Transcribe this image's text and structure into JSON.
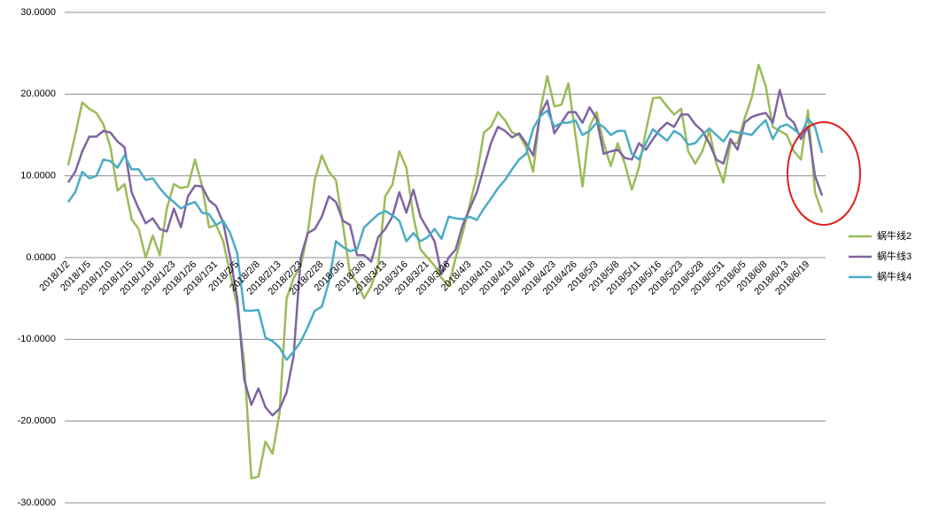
{
  "chart_data": {
    "type": "line",
    "categories": [
      "2018/1/2",
      null,
      null,
      "2018/1/5",
      null,
      null,
      "2018/1/10",
      null,
      null,
      "2018/1/15",
      null,
      null,
      "2018/1/18",
      null,
      null,
      "2018/1/23",
      null,
      null,
      "2018/1/26",
      null,
      null,
      "2018/1/31",
      null,
      null,
      "2018/2/5",
      null,
      null,
      "2018/2/8",
      null,
      null,
      "2018/2/13",
      null,
      null,
      "2018/2/23",
      null,
      null,
      "2018/2/28",
      null,
      null,
      "2018/3/5",
      null,
      null,
      "2018/3/8",
      null,
      null,
      "2018/3/13",
      null,
      null,
      "2018/3/16",
      null,
      null,
      "2018/3/21",
      null,
      null,
      "2018/3/26",
      null,
      null,
      "2018/4/3",
      null,
      null,
      "2018/4/10",
      null,
      null,
      "2018/4/13",
      null,
      null,
      "2018/4/18",
      null,
      null,
      "2018/4/23",
      null,
      null,
      "2018/4/26",
      null,
      null,
      "2018/5/3",
      null,
      null,
      "2018/5/8",
      null,
      null,
      "2018/5/11",
      null,
      null,
      "2018/5/16",
      null,
      null,
      "2018/5/23",
      null,
      null,
      "2018/5/28",
      null,
      null,
      "2018/5/31",
      null,
      null,
      "2018/6/5",
      null,
      null,
      "2018/6/8",
      null,
      null,
      "2018/6/13",
      null,
      null,
      "2018/6/19",
      null,
      null
    ],
    "series": [
      {
        "name": "蜗牛线2",
        "color": "#9bbb59",
        "values": [
          11.3,
          15,
          19,
          18.2,
          17.7,
          16.3,
          13.5,
          8.2,
          9,
          4.7,
          3.5,
          0,
          2.7,
          0.3,
          6,
          9,
          8.5,
          8.7,
          12,
          8.8,
          3.7,
          4,
          2,
          -2,
          -6,
          -13,
          -27,
          -26.8,
          -22.5,
          -24,
          -19,
          -5,
          -2.5,
          -1,
          3,
          9.5,
          12.5,
          10.5,
          9.5,
          4,
          -2,
          -3,
          -5,
          -3.5,
          -1,
          7.5,
          8.9,
          13,
          11,
          5,
          1,
          0,
          -1,
          -2.5,
          -3.5,
          0,
          3,
          6.5,
          10,
          15.3,
          16,
          17.8,
          16.8,
          15.3,
          15,
          13.5,
          10.5,
          18,
          22.2,
          18.5,
          18.7,
          21.3,
          15,
          8.7,
          16,
          17.8,
          14,
          11.2,
          14,
          11.5,
          8.3,
          11,
          15.5,
          19.5,
          19.6,
          18.5,
          17.5,
          18.2,
          13,
          11.5,
          13,
          15.5,
          11.5,
          9.2,
          14,
          14,
          17,
          19.5,
          23.6,
          21,
          16,
          15.5,
          15,
          13,
          12,
          18,
          8,
          5.5
        ]
      },
      {
        "name": "蜗牛线3",
        "color": "#8064a2",
        "values": [
          9.2,
          10.5,
          13,
          14.8,
          14.8,
          15.5,
          15.3,
          14.2,
          13.5,
          8,
          6,
          4.2,
          4.8,
          3.5,
          3.2,
          6,
          3.7,
          7.5,
          8.8,
          8.7,
          7,
          6.3,
          4.3,
          0,
          -5,
          -15,
          -18,
          -16,
          -18.3,
          -19.3,
          -18.5,
          -16.5,
          -12,
          0,
          3,
          3.5,
          5,
          7.5,
          6.8,
          4.5,
          4,
          0.3,
          0.3,
          -0.5,
          2.5,
          3.5,
          5,
          8,
          5.5,
          8.3,
          5,
          3.5,
          2,
          -2,
          0,
          1,
          4,
          6,
          8,
          11,
          14,
          16,
          15.5,
          14.7,
          15.2,
          14,
          12.5,
          17.5,
          19.2,
          15.2,
          16.5,
          17.8,
          17.8,
          16.5,
          18.4,
          17,
          12.7,
          13,
          13.2,
          12.2,
          12,
          14,
          13.2,
          14.5,
          15.7,
          16.5,
          16,
          17.5,
          17.5,
          16.3,
          15.5,
          14,
          12,
          11.5,
          14.5,
          13.2,
          16.5,
          17.2,
          17.5,
          17.7,
          16.5,
          20.5,
          17.3,
          16.5,
          14.5,
          16,
          10,
          7.6
        ]
      },
      {
        "name": "蜗牛线4",
        "color": "#4bacc6",
        "values": [
          6.8,
          8,
          10.5,
          9.7,
          10,
          12,
          11.8,
          11,
          12.5,
          10.8,
          10.8,
          9.5,
          9.7,
          8.5,
          7.5,
          6.8,
          6,
          6.5,
          6.8,
          5.5,
          5.3,
          4,
          4.5,
          3,
          0.5,
          -6.5,
          -6.5,
          -6.4,
          -9.8,
          -10.2,
          -11,
          -12.5,
          -11.5,
          -10.3,
          -8.5,
          -6.5,
          -6,
          -3,
          2,
          1.3,
          0.8,
          1,
          3.7,
          4.5,
          5.3,
          5.7,
          5.2,
          4.5,
          2,
          3,
          2,
          2.5,
          3.5,
          2.3,
          5,
          4.8,
          4.7,
          5,
          4.6,
          6,
          7.2,
          8.5,
          9.5,
          10.8,
          12,
          12.7,
          15.8,
          17.3,
          18,
          16,
          16.5,
          16.5,
          16.8,
          15,
          15.5,
          16.5,
          16,
          15,
          15.5,
          15.5,
          12.7,
          12,
          14,
          15.7,
          15,
          14.3,
          15.5,
          15,
          13.8,
          14,
          15,
          15.8,
          15,
          14.2,
          15.5,
          15.3,
          15.2,
          15,
          16,
          16.8,
          14.5,
          16,
          16.3,
          15.7,
          15,
          17,
          16,
          12.8
        ]
      }
    ],
    "ylim": [
      -30,
      30
    ],
    "yticks": [
      {
        "value": -30,
        "label": "-30.0000"
      },
      {
        "value": -20,
        "label": "-20.0000"
      },
      {
        "value": -10,
        "label": "-10.0000"
      },
      {
        "value": 0,
        "label": "0.0000"
      },
      {
        "value": 10,
        "label": "10.0000"
      },
      {
        "value": 20,
        "label": "20.0000"
      },
      {
        "value": 30,
        "label": "30.0000"
      }
    ],
    "grid": true,
    "legend": "right"
  }
}
